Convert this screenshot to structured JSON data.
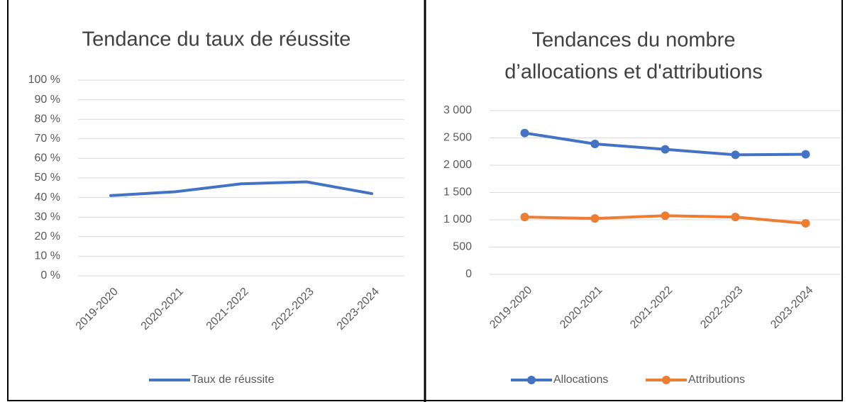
{
  "chart_data": [
    {
      "type": "line",
      "title": "Tendance du taux de réussite",
      "categories": [
        "2019-2020",
        "2020-2021",
        "2021-2022",
        "2022-2023",
        "2023-2024"
      ],
      "series": [
        {
          "name": "Taux de réussite",
          "color": "#4472c4",
          "values": [
            41,
            43,
            47,
            48,
            42
          ]
        }
      ],
      "ylim": [
        0,
        100
      ],
      "yticks": [
        {
          "value": 0,
          "label": "0 %"
        },
        {
          "value": 10,
          "label": "10 %"
        },
        {
          "value": 20,
          "label": "20 %"
        },
        {
          "value": 30,
          "label": "30 %"
        },
        {
          "value": 40,
          "label": "40 %"
        },
        {
          "value": 50,
          "label": "50 %"
        },
        {
          "value": 60,
          "label": "60 %"
        },
        {
          "value": 70,
          "label": "70 %"
        },
        {
          "value": 80,
          "label": "80 %"
        },
        {
          "value": 90,
          "label": "90 %"
        },
        {
          "value": 100,
          "label": "100 %"
        }
      ],
      "grid": true,
      "markers": false,
      "legend": "bottom"
    },
    {
      "type": "line",
      "title": [
        "Tendances du nombre",
        "d’allocations et d'attributions"
      ],
      "categories": [
        "2019-2020",
        "2020-2021",
        "2021-2022",
        "2022-2023",
        "2023-2024"
      ],
      "series": [
        {
          "name": "Allocations",
          "color": "#4472c4",
          "values": [
            2590,
            2390,
            2290,
            2190,
            2200
          ]
        },
        {
          "name": "Attributions",
          "color": "#ed7d31",
          "values": [
            1050,
            1025,
            1075,
            1050,
            935
          ]
        }
      ],
      "ylim": [
        0,
        3000
      ],
      "yticks": [
        0,
        500,
        {
          "value": 1000,
          "label": "1 000"
        },
        {
          "value": 1500,
          "label": "1 500"
        },
        {
          "value": 2000,
          "label": "2 000"
        },
        {
          "value": 2500,
          "label": "2 500"
        },
        {
          "value": 3000,
          "label": "3 000"
        }
      ],
      "grid": true,
      "markers": true,
      "legend": "bottom"
    }
  ]
}
